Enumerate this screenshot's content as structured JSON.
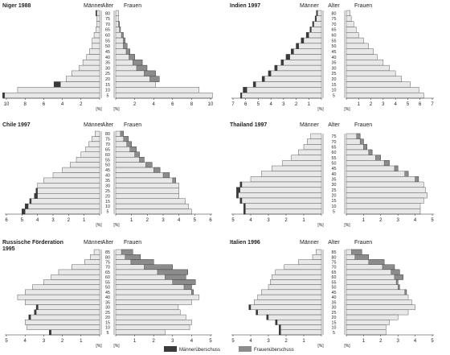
{
  "labels": {
    "left": "Männer",
    "center": "Alter",
    "right": "Frauen",
    "unit": "[%]"
  },
  "legend": {
    "male_surplus": "Männerüberschuss",
    "female_surplus": "Frauenüberschuss"
  },
  "colors": {
    "base": "#e8e8e8",
    "male_surplus": "#3a3a3a",
    "female_surplus": "#8c8c8c",
    "outline": "#3c3c3c"
  },
  "chart_data": [
    {
      "type": "bar",
      "title": [
        "Niger 1988"
      ],
      "xmax": 10,
      "xticks": [
        10,
        8,
        6,
        4,
        2,
        0
      ],
      "age_labels": [
        "80",
        "75",
        "70",
        "65",
        "60",
        "55",
        "50",
        "45",
        "40",
        "35",
        "30",
        "25",
        "20",
        "15",
        "10",
        "5"
      ],
      "series": [
        {
          "name": "Männer",
          "values": [
            0.4,
            0.3,
            0.3,
            0.4,
            0.6,
            0.8,
            0.8,
            1.1,
            1.4,
            1.8,
            2.2,
            3.0,
            3.6,
            4.9,
            8.8,
            10.4
          ]
        },
        {
          "name": "Frauen",
          "values": [
            0.3,
            0.3,
            0.4,
            0.5,
            0.8,
            1.0,
            1.2,
            1.5,
            2.0,
            2.8,
            3.3,
            4.2,
            4.6,
            4.2,
            8.8,
            10.2
          ]
        }
      ]
    },
    {
      "type": "bar",
      "title": [
        "Indien 1997"
      ],
      "xmax": 7,
      "xticks": [
        7,
        6,
        5,
        4,
        3,
        2,
        1,
        0
      ],
      "age_labels": [
        "80",
        "75",
        "70",
        "65",
        "60",
        "55",
        "50",
        "45",
        "40",
        "35",
        "30",
        "25",
        "20",
        "15",
        "10",
        "5"
      ],
      "series": [
        {
          "name": "Männer",
          "values": [
            0.4,
            0.5,
            0.7,
            0.9,
            1.2,
            1.6,
            2.0,
            2.4,
            2.8,
            3.2,
            3.7,
            4.2,
            4.7,
            5.4,
            6.2,
            6.4
          ]
        },
        {
          "name": "Frauen",
          "values": [
            0.3,
            0.4,
            0.6,
            0.8,
            1.0,
            1.4,
            1.8,
            2.2,
            2.5,
            3.0,
            3.5,
            4.0,
            4.5,
            5.2,
            5.9,
            6.3
          ]
        }
      ]
    },
    {
      "type": "bar",
      "title": [
        "Chile 1997"
      ],
      "xmax": 6,
      "xticks": [
        6,
        5,
        4,
        3,
        2,
        1,
        0
      ],
      "age_labels": [
        "80",
        "75",
        "70",
        "65",
        "60",
        "55",
        "50",
        "45",
        "40",
        "35",
        "30",
        "25",
        "20",
        "15",
        "10",
        "5"
      ],
      "series": [
        {
          "name": "Männer",
          "values": [
            0.3,
            0.5,
            0.7,
            0.9,
            1.2,
            1.5,
            1.9,
            2.4,
            3.0,
            3.6,
            4.0,
            4.1,
            4.2,
            4.5,
            4.8,
            5.0
          ]
        },
        {
          "name": "Frauen",
          "values": [
            0.5,
            0.8,
            1.0,
            1.3,
            1.5,
            1.8,
            2.3,
            2.8,
            3.4,
            3.8,
            4.0,
            4.0,
            4.0,
            4.4,
            4.6,
            4.8
          ]
        }
      ]
    },
    {
      "type": "bar",
      "title": [
        "Thailand 1997"
      ],
      "xmax": 5,
      "xticks": [
        5,
        4,
        3,
        2,
        1,
        0
      ],
      "age_labels": [
        "75",
        "70",
        "65",
        "60",
        "55",
        "50",
        "45",
        "40",
        "35",
        "30",
        "25",
        "20",
        "15",
        "10",
        "5"
      ],
      "series": [
        {
          "name": "Männer",
          "values": [
            0.6,
            0.8,
            1.0,
            1.3,
            1.7,
            2.2,
            2.8,
            3.4,
            4.0,
            4.6,
            4.8,
            4.8,
            4.6,
            4.4,
            4.4
          ]
        },
        {
          "name": "Frauen",
          "values": [
            0.8,
            1.0,
            1.2,
            1.5,
            2.0,
            2.5,
            3.0,
            3.6,
            4.2,
            4.5,
            4.6,
            4.7,
            4.5,
            4.3,
            4.3
          ]
        }
      ]
    },
    {
      "type": "bar",
      "title": [
        "Russische Förderation",
        "1995"
      ],
      "xmax": 5,
      "xticks": [
        5,
        4,
        3,
        2,
        1,
        0
      ],
      "age_labels": [
        "85",
        "80",
        "75",
        "70",
        "65",
        "60",
        "55",
        "50",
        "45",
        "40",
        "35",
        "30",
        "25",
        "20",
        "15",
        "10",
        "5"
      ],
      "series": [
        {
          "name": "Männer",
          "values": [
            0.3,
            0.5,
            0.8,
            1.5,
            2.2,
            2.6,
            3.0,
            3.6,
            4.0,
            4.4,
            4.0,
            3.4,
            3.5,
            3.8,
            4.0,
            3.9,
            2.7
          ]
        },
        {
          "name": "Frauen",
          "values": [
            0.9,
            1.3,
            2.0,
            3.0,
            3.8,
            3.7,
            4.2,
            4.0,
            4.1,
            4.4,
            4.0,
            3.3,
            3.4,
            3.7,
            4.0,
            3.9,
            2.6
          ]
        }
      ]
    },
    {
      "type": "bar",
      "title": [
        "Italien 1996"
      ],
      "xmax": 5,
      "xticks": [
        5,
        4,
        3,
        2,
        1,
        0
      ],
      "age_labels": [
        "85",
        "80",
        "75",
        "70",
        "65",
        "60",
        "55",
        "50",
        "45",
        "40",
        "35",
        "30",
        "25",
        "20",
        "15",
        "10",
        "5"
      ],
      "series": [
        {
          "name": "Männer",
          "values": [
            0.3,
            0.5,
            1.3,
            2.1,
            2.6,
            2.8,
            2.9,
            3.0,
            3.4,
            3.6,
            3.8,
            4.1,
            3.7,
            3.1,
            2.6,
            2.4,
            2.4
          ]
        },
        {
          "name": "Frauen",
          "values": [
            0.9,
            1.3,
            2.2,
            2.8,
            3.1,
            3.3,
            3.0,
            3.1,
            3.5,
            3.6,
            3.8,
            4.0,
            3.6,
            3.0,
            2.5,
            2.3,
            2.3
          ]
        }
      ]
    }
  ]
}
